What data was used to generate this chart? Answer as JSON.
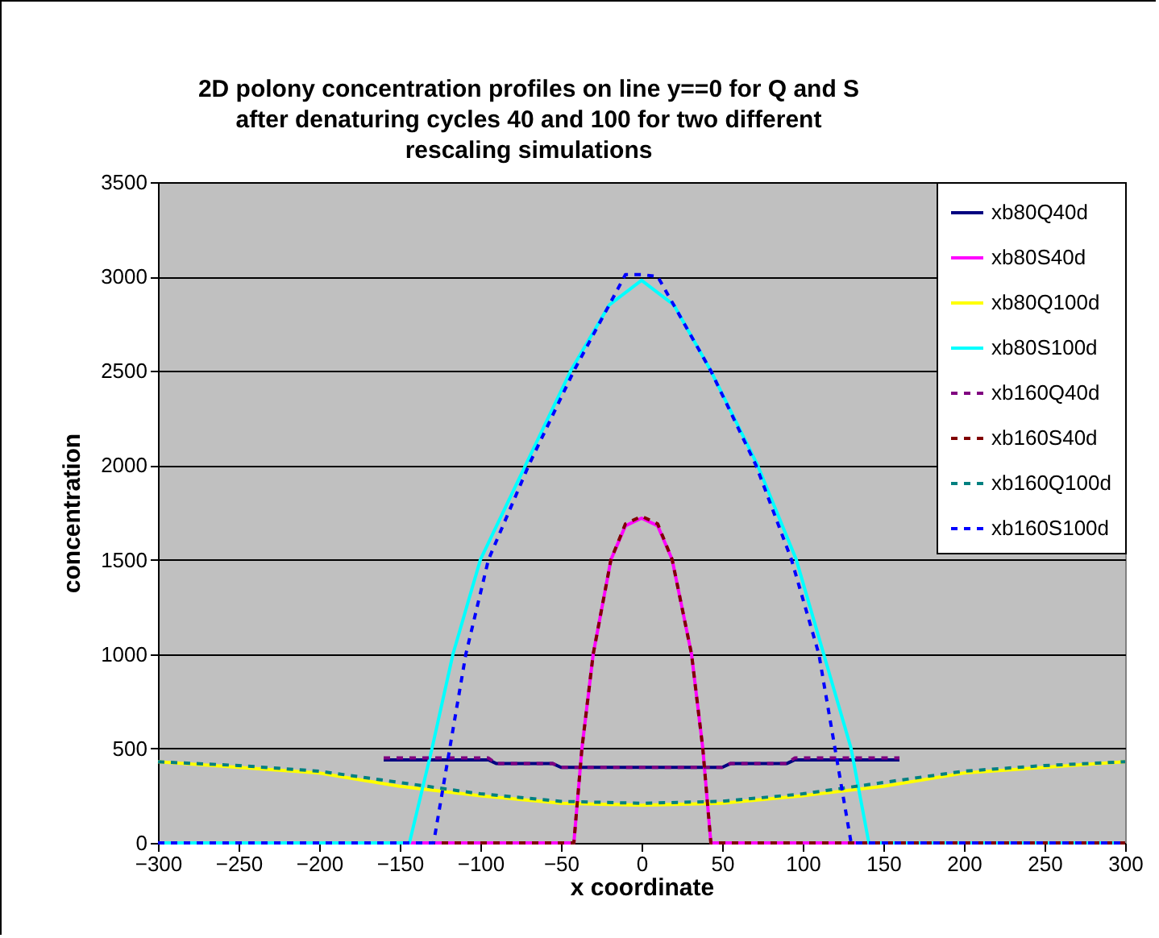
{
  "chart_data": {
    "type": "line",
    "title": "2D polony concentration profiles on line y==0 for Q and S\nafter denaturing cycles 40 and 100 for two different\nrescaling simulations",
    "xlabel": "x coordinate",
    "ylabel": "concentration",
    "xlim": [
      -300,
      300
    ],
    "ylim": [
      0,
      3500
    ],
    "xticks": [
      -300,
      -250,
      -200,
      -150,
      -100,
      -50,
      0,
      50,
      100,
      150,
      200,
      250,
      300
    ],
    "yticks": [
      0,
      500,
      1000,
      1500,
      2000,
      2500,
      3000,
      3500
    ],
    "grid": "y",
    "legend": "top right",
    "series": [
      {
        "name": "xb80Q40d",
        "color": "#000080",
        "line_style": "solid",
        "x": [
          -160,
          -95,
          -90,
          -55,
          -50,
          0,
          50,
          55,
          90,
          95,
          160
        ],
        "values": [
          440,
          440,
          420,
          420,
          400,
          400,
          400,
          420,
          420,
          440,
          440
        ]
      },
      {
        "name": "xb80S40d",
        "color": "#ff00ff",
        "line_style": "solid",
        "x": [
          -300,
          -45,
          -42,
          -37,
          -30,
          -19,
          -10,
          0,
          10,
          19,
          31,
          38,
          43,
          46,
          300
        ],
        "values": [
          0,
          0,
          0,
          500,
          1000,
          1500,
          1680,
          1720,
          1680,
          1500,
          1000,
          500,
          0,
          0,
          0
        ]
      },
      {
        "name": "xb80Q100d",
        "color": "#ffff00",
        "line_style": "solid",
        "x": [
          -300,
          -250,
          -200,
          -150,
          -100,
          -50,
          0,
          50,
          100,
          150,
          200,
          250,
          300
        ],
        "values": [
          430,
          400,
          370,
          300,
          250,
          210,
          200,
          210,
          250,
          300,
          370,
          400,
          430
        ]
      },
      {
        "name": "xb80S100d",
        "color": "#00ffff",
        "line_style": "solid",
        "x": [
          -300,
          -144,
          -130,
          -117,
          -100,
          -72,
          -44,
          -20,
          0,
          20,
          43,
          72,
          96,
          113,
          130,
          141,
          300
        ],
        "values": [
          0,
          0,
          500,
          1000,
          1500,
          2000,
          2500,
          2850,
          2980,
          2850,
          2500,
          2000,
          1500,
          1000,
          500,
          0,
          0
        ]
      },
      {
        "name": "xb160Q40d",
        "color": "#800080",
        "line_style": "dotted",
        "x": [
          -160,
          -95,
          -90,
          -55,
          -50,
          0,
          50,
          55,
          90,
          95,
          160
        ],
        "values": [
          450,
          450,
          420,
          420,
          400,
          400,
          400,
          420,
          420,
          450,
          450
        ]
      },
      {
        "name": "xb160S40d",
        "color": "#800000",
        "line_style": "dotted",
        "x": [
          -300,
          -44,
          -42,
          -37,
          -30,
          -19,
          -10,
          0,
          10,
          19,
          31,
          38,
          43,
          46,
          300
        ],
        "values": [
          0,
          0,
          0,
          500,
          1000,
          1500,
          1690,
          1730,
          1690,
          1500,
          1000,
          500,
          0,
          0,
          0
        ]
      },
      {
        "name": "xb160Q100d",
        "color": "#008080",
        "line_style": "dotted",
        "x": [
          -300,
          -250,
          -200,
          -150,
          -100,
          -50,
          0,
          50,
          100,
          150,
          200,
          250,
          300
        ],
        "values": [
          430,
          410,
          380,
          320,
          260,
          220,
          210,
          220,
          260,
          320,
          380,
          410,
          430
        ]
      },
      {
        "name": "xb160S100d",
        "color": "#0000ff",
        "line_style": "dotted",
        "x": [
          -300,
          -129,
          -119,
          -109,
          -95,
          -70,
          -42,
          -10,
          0,
          10,
          43,
          71,
          93,
          110,
          120,
          130,
          300
        ],
        "values": [
          0,
          0,
          500,
          1000,
          1500,
          2000,
          2500,
          3010,
          3010,
          3000,
          2500,
          2000,
          1500,
          1000,
          500,
          0,
          0
        ]
      }
    ]
  }
}
